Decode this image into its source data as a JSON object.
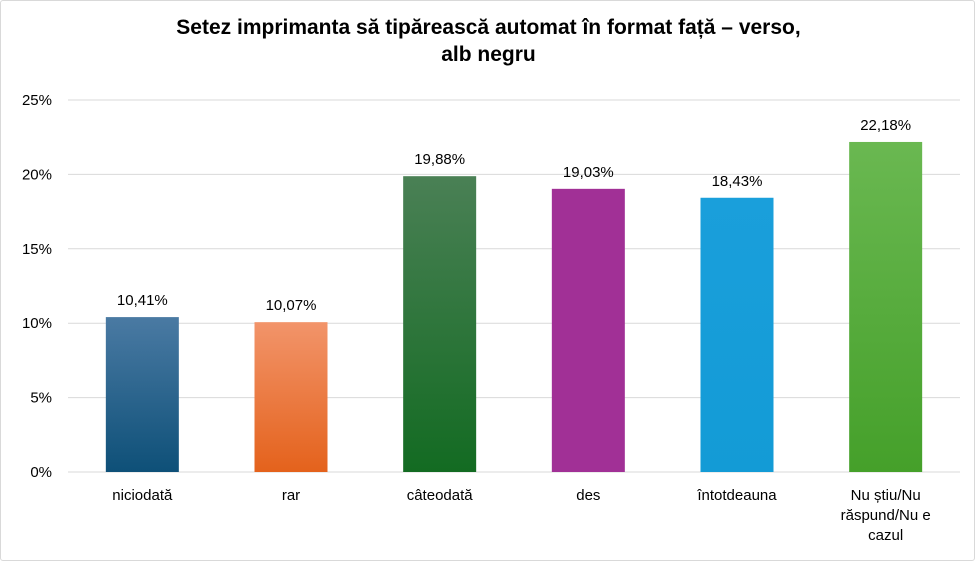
{
  "chart_data": {
    "type": "bar",
    "title_lines": [
      "Setez imprimanta să tipărească automat în format față – verso,",
      "alb negru"
    ],
    "categories": [
      [
        "niciodată"
      ],
      [
        "rar"
      ],
      [
        "câteodată"
      ],
      [
        "des"
      ],
      [
        "întotdeauna"
      ],
      [
        "Nu știu/Nu",
        "răspund/Nu e",
        "cazul"
      ]
    ],
    "values": [
      10.41,
      10.07,
      19.88,
      19.03,
      18.43,
      22.18
    ],
    "data_labels": [
      "10,41%",
      "10,07%",
      "19,88%",
      "19,03%",
      "18,43%",
      "22,18%"
    ],
    "y_ticks": [
      0,
      5,
      10,
      15,
      20,
      25
    ],
    "y_tick_labels": [
      "0%",
      "5%",
      "10%",
      "15%",
      "20%",
      "25%"
    ],
    "ylim": [
      0,
      25
    ],
    "grid": true,
    "colors": [
      [
        "#4a7aa3",
        "#0e5078"
      ],
      [
        "#f2946a",
        "#e4621c"
      ],
      [
        "#4a8055",
        "#136b22"
      ],
      [
        "#a13096",
        "#a13096"
      ],
      [
        "#1a9fdb",
        "#139bd6"
      ],
      [
        "#6ab851",
        "#45a02a"
      ]
    ]
  }
}
